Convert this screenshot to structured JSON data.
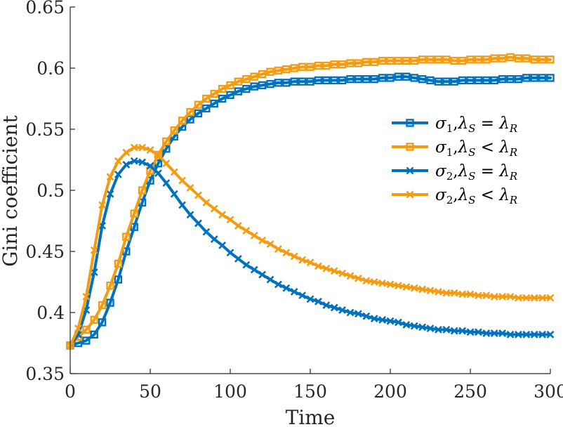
{
  "chart_data": {
    "type": "line",
    "xlabel": "Time",
    "ylabel": "Gini coefficient",
    "xlim": [
      0,
      300
    ],
    "ylim": [
      0.35,
      0.65
    ],
    "xticks": [
      0,
      50,
      100,
      150,
      200,
      250,
      300
    ],
    "yticks": [
      0.35,
      0.4,
      0.45,
      0.5,
      0.55,
      0.6,
      0.65
    ],
    "xtick_labels": [
      "0",
      "50",
      "100",
      "150",
      "200",
      "250",
      "300"
    ],
    "ytick_labels": [
      "0.35",
      "0.4",
      "0.45",
      "0.5",
      "0.55",
      "0.6",
      "0.65"
    ],
    "grid": false,
    "legend_position": "right",
    "series": [
      {
        "name": "σ1,λS = λR",
        "legend": {
          "sym": "σ",
          "sub1": "1",
          "lam": "λ",
          "subS": "S",
          "op": "=",
          "lam2": "λ",
          "subR": "R"
        },
        "color": "#0072BD",
        "marker": "square",
        "points": [
          [
            0,
            0.373
          ],
          [
            5,
            0.375
          ],
          [
            10,
            0.377
          ],
          [
            15,
            0.382
          ],
          [
            20,
            0.392
          ],
          [
            25,
            0.408
          ],
          [
            30,
            0.427
          ],
          [
            35,
            0.45
          ],
          [
            40,
            0.47
          ],
          [
            45,
            0.49
          ],
          [
            50,
            0.508
          ],
          [
            55,
            0.522
          ],
          [
            60,
            0.534
          ],
          [
            65,
            0.544
          ],
          [
            70,
            0.552
          ],
          [
            75,
            0.558
          ],
          [
            80,
            0.563
          ],
          [
            85,
            0.567
          ],
          [
            90,
            0.571
          ],
          [
            95,
            0.575
          ],
          [
            100,
            0.578
          ],
          [
            105,
            0.581
          ],
          [
            110,
            0.583
          ],
          [
            115,
            0.585
          ],
          [
            120,
            0.586
          ],
          [
            125,
            0.587
          ],
          [
            130,
            0.588
          ],
          [
            135,
            0.588
          ],
          [
            140,
            0.589
          ],
          [
            145,
            0.589
          ],
          [
            150,
            0.589
          ],
          [
            155,
            0.59
          ],
          [
            160,
            0.59
          ],
          [
            165,
            0.59
          ],
          [
            170,
            0.59
          ],
          [
            175,
            0.591
          ],
          [
            180,
            0.591
          ],
          [
            185,
            0.591
          ],
          [
            190,
            0.591
          ],
          [
            195,
            0.592
          ],
          [
            200,
            0.592
          ],
          [
            205,
            0.593
          ],
          [
            210,
            0.593
          ],
          [
            215,
            0.592
          ],
          [
            220,
            0.591
          ],
          [
            225,
            0.59
          ],
          [
            230,
            0.589
          ],
          [
            235,
            0.589
          ],
          [
            240,
            0.589
          ],
          [
            245,
            0.59
          ],
          [
            250,
            0.59
          ],
          [
            255,
            0.59
          ],
          [
            260,
            0.59
          ],
          [
            265,
            0.59
          ],
          [
            270,
            0.591
          ],
          [
            275,
            0.591
          ],
          [
            280,
            0.591
          ],
          [
            285,
            0.592
          ],
          [
            290,
            0.592
          ],
          [
            295,
            0.592
          ],
          [
            300,
            0.592
          ]
        ]
      },
      {
        "name": "σ1,λS < λR",
        "legend": {
          "sym": "σ",
          "sub1": "1",
          "lam": "λ",
          "subS": "S",
          "op": "<",
          "lam2": "λ",
          "subR": "R"
        },
        "color": "#F39C12",
        "marker": "square",
        "points": [
          [
            0,
            0.373
          ],
          [
            5,
            0.38
          ],
          [
            10,
            0.386
          ],
          [
            15,
            0.394
          ],
          [
            20,
            0.406
          ],
          [
            25,
            0.422
          ],
          [
            30,
            0.44
          ],
          [
            35,
            0.462
          ],
          [
            40,
            0.481
          ],
          [
            45,
            0.5
          ],
          [
            50,
            0.516
          ],
          [
            55,
            0.529
          ],
          [
            60,
            0.54
          ],
          [
            65,
            0.549
          ],
          [
            70,
            0.557
          ],
          [
            75,
            0.564
          ],
          [
            80,
            0.57
          ],
          [
            85,
            0.575
          ],
          [
            90,
            0.579
          ],
          [
            95,
            0.583
          ],
          [
            100,
            0.586
          ],
          [
            105,
            0.589
          ],
          [
            110,
            0.591
          ],
          [
            115,
            0.593
          ],
          [
            120,
            0.595
          ],
          [
            125,
            0.597
          ],
          [
            130,
            0.598
          ],
          [
            135,
            0.599
          ],
          [
            140,
            0.6
          ],
          [
            145,
            0.601
          ],
          [
            150,
            0.601
          ],
          [
            155,
            0.602
          ],
          [
            160,
            0.602
          ],
          [
            165,
            0.603
          ],
          [
            170,
            0.603
          ],
          [
            175,
            0.604
          ],
          [
            180,
            0.604
          ],
          [
            185,
            0.605
          ],
          [
            190,
            0.605
          ],
          [
            195,
            0.606
          ],
          [
            200,
            0.606
          ],
          [
            205,
            0.606
          ],
          [
            210,
            0.606
          ],
          [
            215,
            0.606
          ],
          [
            220,
            0.607
          ],
          [
            225,
            0.607
          ],
          [
            230,
            0.607
          ],
          [
            235,
            0.607
          ],
          [
            240,
            0.606
          ],
          [
            245,
            0.606
          ],
          [
            250,
            0.607
          ],
          [
            255,
            0.607
          ],
          [
            260,
            0.607
          ],
          [
            265,
            0.608
          ],
          [
            270,
            0.608
          ],
          [
            275,
            0.609
          ],
          [
            280,
            0.608
          ],
          [
            285,
            0.608
          ],
          [
            290,
            0.607
          ],
          [
            295,
            0.607
          ],
          [
            300,
            0.607
          ]
        ]
      },
      {
        "name": "σ2,λS = λR",
        "legend": {
          "sym": "σ",
          "sub1": "2",
          "lam": "λ",
          "subS": "S",
          "op": "=",
          "lam2": "λ",
          "subR": "R"
        },
        "color": "#0072BD",
        "marker": "x",
        "points": [
          [
            0,
            0.373
          ],
          [
            5,
            0.382
          ],
          [
            10,
            0.402
          ],
          [
            15,
            0.433
          ],
          [
            20,
            0.471
          ],
          [
            25,
            0.497
          ],
          [
            30,
            0.513
          ],
          [
            35,
            0.521
          ],
          [
            40,
            0.524
          ],
          [
            45,
            0.523
          ],
          [
            50,
            0.52
          ],
          [
            55,
            0.514
          ],
          [
            60,
            0.506
          ],
          [
            65,
            0.497
          ],
          [
            70,
            0.488
          ],
          [
            75,
            0.48
          ],
          [
            80,
            0.473
          ],
          [
            85,
            0.466
          ],
          [
            90,
            0.46
          ],
          [
            95,
            0.455
          ],
          [
            100,
            0.449
          ],
          [
            105,
            0.444
          ],
          [
            110,
            0.439
          ],
          [
            115,
            0.435
          ],
          [
            120,
            0.431
          ],
          [
            125,
            0.427
          ],
          [
            130,
            0.423
          ],
          [
            135,
            0.42
          ],
          [
            140,
            0.417
          ],
          [
            145,
            0.414
          ],
          [
            150,
            0.411
          ],
          [
            155,
            0.409
          ],
          [
            160,
            0.406
          ],
          [
            165,
            0.404
          ],
          [
            170,
            0.402
          ],
          [
            175,
            0.4
          ],
          [
            180,
            0.399
          ],
          [
            185,
            0.397
          ],
          [
            190,
            0.395
          ],
          [
            195,
            0.394
          ],
          [
            200,
            0.393
          ],
          [
            205,
            0.392
          ],
          [
            210,
            0.39
          ],
          [
            215,
            0.389
          ],
          [
            220,
            0.388
          ],
          [
            225,
            0.387
          ],
          [
            230,
            0.386
          ],
          [
            235,
            0.386
          ],
          [
            240,
            0.385
          ],
          [
            245,
            0.385
          ],
          [
            250,
            0.384
          ],
          [
            255,
            0.384
          ],
          [
            260,
            0.383
          ],
          [
            265,
            0.383
          ],
          [
            270,
            0.383
          ],
          [
            275,
            0.382
          ],
          [
            280,
            0.382
          ],
          [
            285,
            0.382
          ],
          [
            290,
            0.382
          ],
          [
            295,
            0.382
          ],
          [
            300,
            0.382
          ]
        ]
      },
      {
        "name": "σ2,λS < λR",
        "legend": {
          "sym": "σ",
          "sub1": "2",
          "lam": "λ",
          "subS": "S",
          "op": "<",
          "lam2": "λ",
          "subR": "R"
        },
        "color": "#F39C12",
        "marker": "x",
        "points": [
          [
            0,
            0.373
          ],
          [
            5,
            0.387
          ],
          [
            10,
            0.413
          ],
          [
            15,
            0.451
          ],
          [
            20,
            0.488
          ],
          [
            25,
            0.511
          ],
          [
            30,
            0.524
          ],
          [
            35,
            0.531
          ],
          [
            40,
            0.535
          ],
          [
            45,
            0.535
          ],
          [
            50,
            0.533
          ],
          [
            55,
            0.529
          ],
          [
            60,
            0.522
          ],
          [
            65,
            0.515
          ],
          [
            70,
            0.508
          ],
          [
            75,
            0.502
          ],
          [
            80,
            0.496
          ],
          [
            85,
            0.49
          ],
          [
            90,
            0.485
          ],
          [
            95,
            0.48
          ],
          [
            100,
            0.476
          ],
          [
            105,
            0.471
          ],
          [
            110,
            0.467
          ],
          [
            115,
            0.463
          ],
          [
            120,
            0.459
          ],
          [
            125,
            0.456
          ],
          [
            130,
            0.452
          ],
          [
            135,
            0.449
          ],
          [
            140,
            0.446
          ],
          [
            145,
            0.443
          ],
          [
            150,
            0.441
          ],
          [
            155,
            0.438
          ],
          [
            160,
            0.436
          ],
          [
            165,
            0.434
          ],
          [
            170,
            0.432
          ],
          [
            175,
            0.43
          ],
          [
            180,
            0.428
          ],
          [
            185,
            0.426
          ],
          [
            190,
            0.425
          ],
          [
            195,
            0.424
          ],
          [
            200,
            0.423
          ],
          [
            205,
            0.422
          ],
          [
            210,
            0.421
          ],
          [
            215,
            0.42
          ],
          [
            220,
            0.419
          ],
          [
            225,
            0.418
          ],
          [
            230,
            0.417
          ],
          [
            235,
            0.416
          ],
          [
            240,
            0.416
          ],
          [
            245,
            0.415
          ],
          [
            250,
            0.415
          ],
          [
            255,
            0.414
          ],
          [
            260,
            0.414
          ],
          [
            265,
            0.413
          ],
          [
            270,
            0.413
          ],
          [
            275,
            0.413
          ],
          [
            280,
            0.412
          ],
          [
            285,
            0.412
          ],
          [
            290,
            0.412
          ],
          [
            295,
            0.412
          ],
          [
            300,
            0.412
          ]
        ]
      }
    ]
  }
}
